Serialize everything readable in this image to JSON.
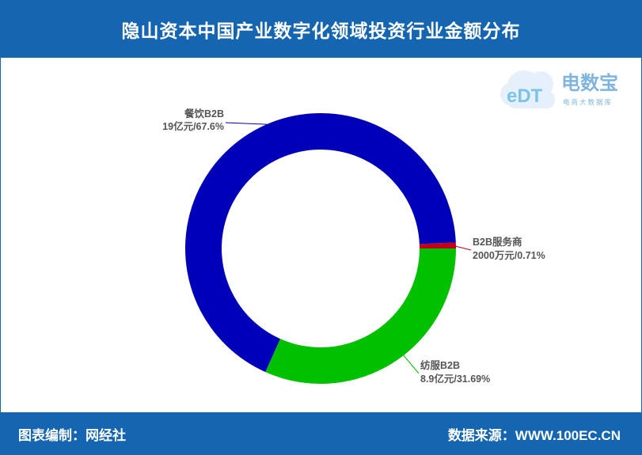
{
  "header": {
    "title": "隐山资本中国产业数字化领域投资行业金额分布"
  },
  "footer": {
    "left": "图表编制：网经社",
    "right": "数据来源：WWW.100EC.CN"
  },
  "logo": {
    "mark": "eDT",
    "name": "电数宝",
    "subtitle": "电商大数据库"
  },
  "chart_data": {
    "type": "pie",
    "donut": true,
    "slices": [
      {
        "name": "餐饮B2B",
        "amount": "19亿元",
        "percent": "67.6%",
        "value": 67.6,
        "color": "#0000b8"
      },
      {
        "name": "纺服B2B",
        "amount": "8.9亿元",
        "percent": "31.69%",
        "value": 31.69,
        "color": "#00c000"
      },
      {
        "name": "B2B服务商",
        "amount": "2000万元",
        "percent": "0.71%",
        "value": 0.71,
        "color": "#c0001a"
      }
    ]
  }
}
